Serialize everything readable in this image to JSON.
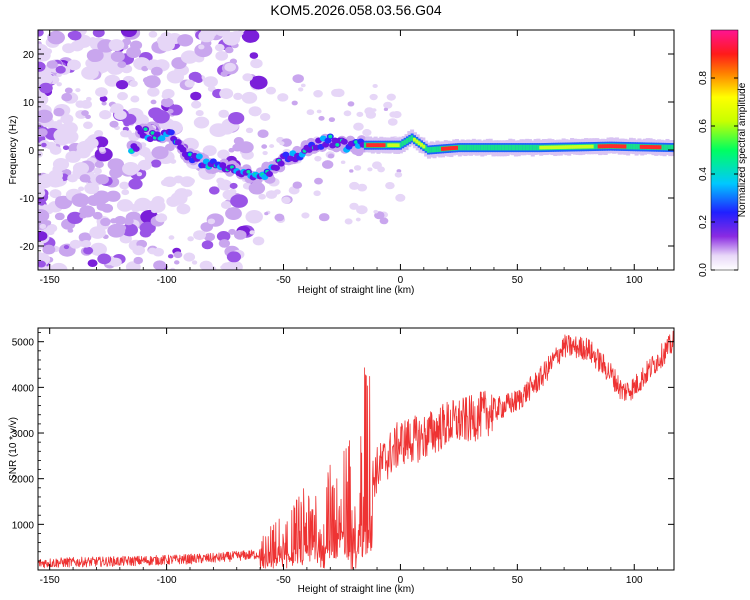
{
  "figure": {
    "title": "KOM5.2026.058.03.56.G04"
  },
  "chart_data": [
    {
      "type": "heatmap",
      "xlabel": "Height of straight line (km)",
      "ylabel": "Frequency (Hz)",
      "xlim": [
        -155,
        117
      ],
      "ylim": [
        -25,
        25
      ],
      "xticks": [
        -150,
        -100,
        -50,
        0,
        50,
        100
      ],
      "yticks": [
        -20,
        -10,
        0,
        10,
        20
      ],
      "ridge": [
        {
          "x": -112,
          "y": 4
        },
        {
          "x": -104,
          "y": 2.5
        },
        {
          "x": -98,
          "y": 3
        },
        {
          "x": -92,
          "y": -1
        },
        {
          "x": -88,
          "y": -2
        },
        {
          "x": -78,
          "y": -3
        },
        {
          "x": -70,
          "y": -4
        },
        {
          "x": -62,
          "y": -6
        },
        {
          "x": -55,
          "y": -4
        },
        {
          "x": -50,
          "y": -2
        },
        {
          "x": -45,
          "y": -1
        },
        {
          "x": -40,
          "y": 0
        },
        {
          "x": -35,
          "y": 1
        },
        {
          "x": -30,
          "y": 2
        },
        {
          "x": -25,
          "y": 1
        },
        {
          "x": -15,
          "y": 1
        },
        {
          "x": 0,
          "y": 1
        },
        {
          "x": 5,
          "y": 2.5
        },
        {
          "x": 12,
          "y": 0
        },
        {
          "x": 25,
          "y": 0.5
        },
        {
          "x": 60,
          "y": 0.5
        },
        {
          "x": 90,
          "y": 0.8
        },
        {
          "x": 117,
          "y": 0.5
        }
      ],
      "colorbar": {
        "label": "Normalized spectral amplitude",
        "range": [
          0,
          1
        ],
        "ticks": [
          "0.0",
          "0.2",
          "0.4",
          "0.6",
          "0.8"
        ]
      }
    },
    {
      "type": "line",
      "xlabel": "Height of straight line (km)",
      "ylabel": "SNR (10 * v/v)",
      "xlim": [
        -155,
        117
      ],
      "ylim": [
        0,
        5300
      ],
      "xticks": [
        -150,
        -100,
        -50,
        0,
        50,
        100
      ],
      "yticks": [
        1000,
        2000,
        3000,
        4000,
        5000
      ],
      "series": [
        {
          "name": "SNR",
          "color": "#ee3333",
          "x": [
            -155,
            -140,
            -120,
            -100,
            -80,
            -60,
            -50,
            -40,
            -30,
            -20,
            -15,
            -10,
            0,
            10,
            20,
            30,
            40,
            50,
            60,
            70,
            80,
            90,
            95,
            100,
            110,
            117
          ],
          "y": [
            150,
            170,
            190,
            220,
            260,
            350,
            600,
            900,
            1100,
            1500,
            1600,
            2200,
            2800,
            2900,
            3200,
            3300,
            3500,
            3700,
            4200,
            4900,
            4850,
            4300,
            3900,
            4000,
            4600,
            5000
          ]
        }
      ]
    }
  ]
}
